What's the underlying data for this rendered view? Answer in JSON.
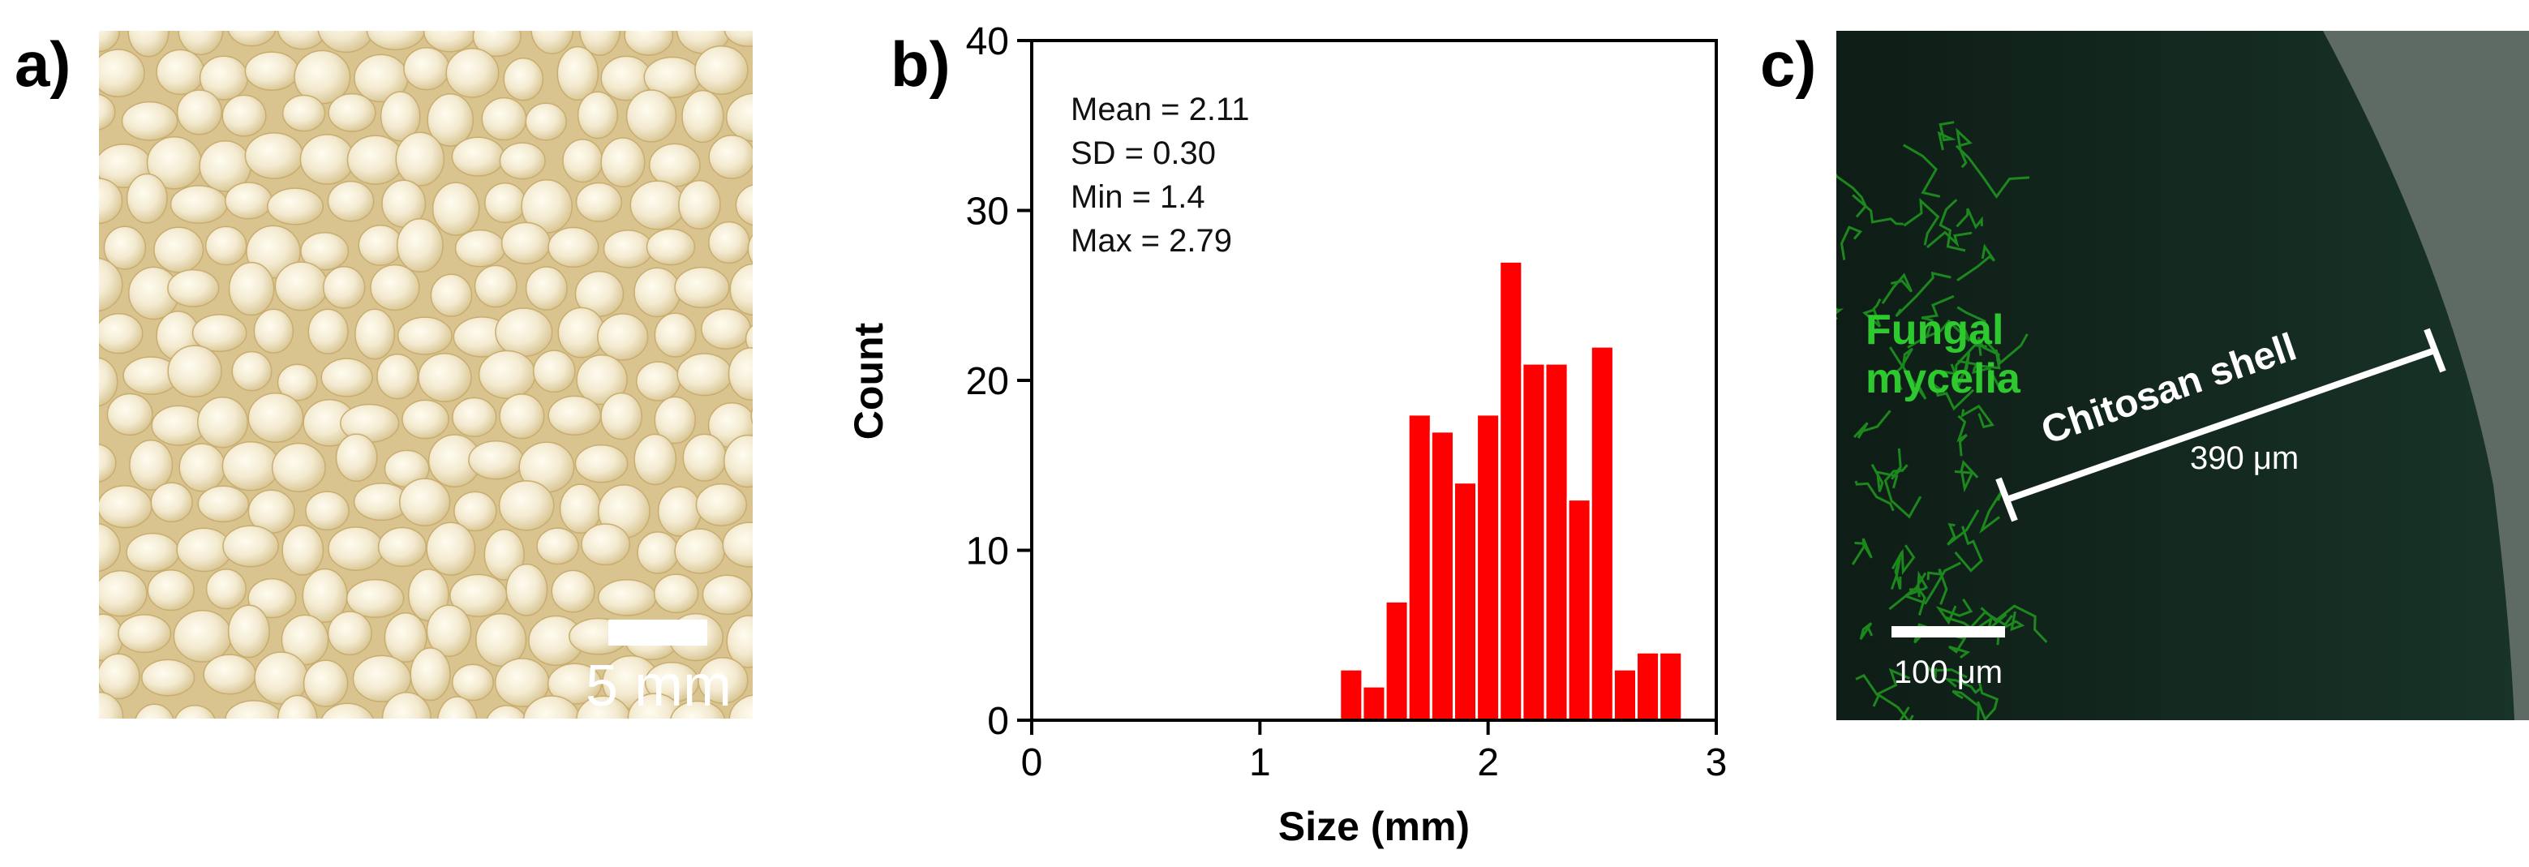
{
  "panel_labels": {
    "a": "a)",
    "b": "b)",
    "c": "c)"
  },
  "panel_a": {
    "scale_bar_label": "5 mm",
    "colors": {
      "bead_light": "#fbf6e4",
      "bead_mid": "#efe4c4",
      "gap": "#d9c38e",
      "edge": "#bfa063"
    }
  },
  "panel_c": {
    "label_fungal_line1": "Fungal",
    "label_fungal_line2": "mycelia",
    "label_shell": "Chitosan shell",
    "label_shell_thickness": "390 μm",
    "scale_bar_label": "100 μm",
    "colors": {
      "background": "#0c1a14",
      "shell": "#12261d",
      "outer": "#5d6b64",
      "text_green": "#2ec92e",
      "mycelia": "#1f9a1f"
    }
  },
  "chart_data": {
    "type": "bar",
    "title": "",
    "xlabel": "Size (mm)",
    "ylabel": "Count",
    "xlim": [
      0,
      3
    ],
    "ylim": [
      0,
      40
    ],
    "xticks": [
      "0",
      "1",
      "2",
      "3"
    ],
    "yticks": [
      "0",
      "10",
      "20",
      "30",
      "40"
    ],
    "bar_color": "#ff0000",
    "bins": [
      {
        "x0": 1.35,
        "x1": 1.45,
        "count": 3
      },
      {
        "x0": 1.45,
        "x1": 1.55,
        "count": 2
      },
      {
        "x0": 1.55,
        "x1": 1.65,
        "count": 7
      },
      {
        "x0": 1.65,
        "x1": 1.75,
        "count": 18
      },
      {
        "x0": 1.75,
        "x1": 1.85,
        "count": 17
      },
      {
        "x0": 1.85,
        "x1": 1.95,
        "count": 14
      },
      {
        "x0": 1.95,
        "x1": 2.05,
        "count": 18
      },
      {
        "x0": 2.05,
        "x1": 2.15,
        "count": 27
      },
      {
        "x0": 2.15,
        "x1": 2.25,
        "count": 21
      },
      {
        "x0": 2.25,
        "x1": 2.35,
        "count": 21
      },
      {
        "x0": 2.35,
        "x1": 2.45,
        "count": 13
      },
      {
        "x0": 2.45,
        "x1": 2.55,
        "count": 22
      },
      {
        "x0": 2.55,
        "x1": 2.65,
        "count": 3
      },
      {
        "x0": 2.65,
        "x1": 2.75,
        "count": 4
      },
      {
        "x0": 2.75,
        "x1": 2.85,
        "count": 4
      }
    ],
    "annotations": [
      "Mean = 2.11",
      "SD = 0.30",
      "Min = 1.4",
      "Max = 2.79"
    ]
  }
}
